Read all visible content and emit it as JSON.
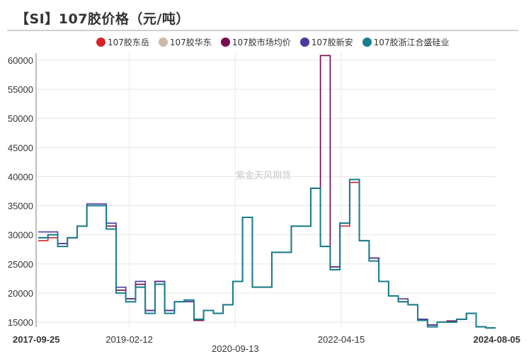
{
  "title": "【SI】107胶价格（元/吨）",
  "watermark": "紫金天风期货",
  "legend": [
    {
      "label": "107胶东岳",
      "color": "#d8232a"
    },
    {
      "label": "107胶华东",
      "color": "#c9bba8"
    },
    {
      "label": "107胶市场均价",
      "color": "#7a0a4f"
    },
    {
      "label": "107胶新安",
      "color": "#4b3a9c"
    },
    {
      "label": "107胶浙江合盛硅业",
      "color": "#167f8c"
    }
  ],
  "chart_data": {
    "type": "line",
    "title": "【SI】107胶价格（元/吨）",
    "xlabel": "",
    "ylabel": "",
    "ylim": [
      14000,
      61000
    ],
    "y_ticks": [
      15000,
      20000,
      25000,
      30000,
      35000,
      40000,
      45000,
      50000,
      55000,
      60000
    ],
    "x_ticks": [
      "2017-09-25",
      "2019-02-12",
      "2020-09-13",
      "2022-04-15",
      "2024-08-05"
    ],
    "x_range": [
      "2017-09-25",
      "2024-08-05"
    ],
    "grid": true,
    "legend_position": "top",
    "x": [
      "2017-09",
      "2017-11",
      "2018-01",
      "2018-03",
      "2018-05",
      "2018-07",
      "2018-08",
      "2018-10",
      "2018-12",
      "2019-02",
      "2019-04",
      "2019-06",
      "2019-08",
      "2019-10",
      "2019-12",
      "2020-02",
      "2020-04",
      "2020-06",
      "2020-08",
      "2020-10",
      "2020-12",
      "2021-02",
      "2021-03",
      "2021-04",
      "2021-06",
      "2021-08",
      "2021-09",
      "2021-10",
      "2021-11",
      "2021-12",
      "2022-01",
      "2022-02",
      "2022-03",
      "2022-04",
      "2022-06",
      "2022-08",
      "2022-10",
      "2022-12",
      "2023-02",
      "2023-04",
      "2023-06",
      "2023-08",
      "2023-10",
      "2023-12",
      "2024-02",
      "2024-04",
      "2024-06",
      "2024-08"
    ],
    "series": [
      {
        "name": "107胶东岳",
        "values": [
          29000,
          29500,
          28500,
          29500,
          31500,
          35000,
          35000,
          31000,
          20500,
          19000,
          21000,
          17000,
          22000,
          17000,
          18500,
          18500,
          15500,
          17000,
          16500,
          18000,
          22000,
          33000,
          21000,
          21000,
          27000,
          27000,
          31500,
          31500,
          38000,
          28000,
          24000,
          31500,
          39000,
          29000,
          26000,
          22000,
          19500,
          18500,
          18000,
          15500,
          14500,
          15000,
          15000,
          15500,
          16500,
          14200,
          14000,
          14000
        ]
      },
      {
        "name": "107胶华东",
        "values": [
          29500,
          30000,
          28500,
          29500,
          31500,
          35000,
          35000,
          31500,
          20500,
          19000,
          21500,
          17000,
          22000,
          17000,
          18500,
          18500,
          15500,
          17000,
          16500,
          18000,
          22000,
          33000,
          21000,
          21000,
          27000,
          27000,
          31500,
          31500,
          38000,
          61000,
          24500,
          32000,
          39500,
          29000,
          26000,
          22000,
          19500,
          18500,
          18000,
          15500,
          14500,
          15000,
          15200,
          15500,
          16500,
          14200,
          14000,
          14000
        ]
      },
      {
        "name": "107胶市场均价",
        "values": [
          29500,
          30000,
          28500,
          29500,
          31500,
          35000,
          35000,
          31500,
          20500,
          19000,
          21500,
          17000,
          22000,
          17000,
          18500,
          18500,
          15300,
          17000,
          16500,
          18000,
          22000,
          33000,
          21000,
          21000,
          27000,
          27000,
          31500,
          31500,
          38000,
          61000,
          24500,
          32000,
          39500,
          29000,
          26000,
          22000,
          19500,
          18500,
          18000,
          15500,
          14500,
          15000,
          15200,
          15500,
          16500,
          14200,
          14000,
          14000
        ]
      },
      {
        "name": "107胶新安",
        "values": [
          30500,
          30500,
          28500,
          29500,
          31500,
          35300,
          35300,
          32000,
          21000,
          19000,
          22000,
          17000,
          22000,
          17000,
          18500,
          18500,
          15500,
          17000,
          16500,
          18000,
          22000,
          33000,
          21000,
          21000,
          27000,
          27000,
          31500,
          31500,
          38000,
          28000,
          24500,
          32000,
          39500,
          29000,
          26000,
          22000,
          19500,
          19000,
          18000,
          15500,
          14500,
          15000,
          15000,
          15500,
          16500,
          14200,
          14000,
          14000
        ]
      },
      {
        "name": "107胶浙江合盛硅业",
        "values": [
          29500,
          30000,
          28000,
          29500,
          31500,
          35000,
          35000,
          31000,
          20000,
          18500,
          21000,
          16500,
          21500,
          16500,
          18500,
          18800,
          15500,
          17000,
          16500,
          18000,
          22000,
          33000,
          21000,
          21000,
          27000,
          27000,
          31500,
          31500,
          38000,
          28000,
          24000,
          32000,
          39500,
          29000,
          25500,
          22000,
          19500,
          18500,
          18000,
          15300,
          14200,
          15000,
          15000,
          15500,
          16500,
          14200,
          14000,
          14000
        ]
      }
    ]
  }
}
